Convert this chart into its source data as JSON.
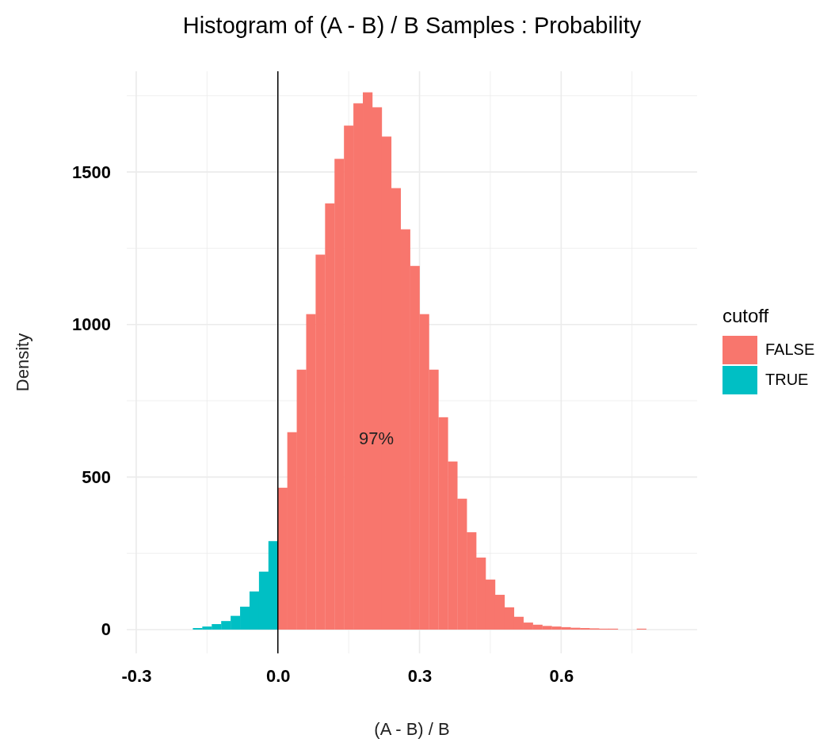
{
  "chart_data": {
    "type": "histogram",
    "title": "Histogram of (A - B) / B Samples : Probability",
    "xlabel": "(A - B) / B",
    "ylabel": "Density",
    "legend_title": "cutoff",
    "bins": [
      -0.18,
      -0.16,
      -0.14,
      -0.12,
      -0.1,
      -0.08,
      -0.06,
      -0.04,
      -0.02,
      0,
      0.02,
      0.04,
      0.06,
      0.08,
      0.1,
      0.12,
      0.14,
      0.16,
      0.18,
      0.2,
      0.22,
      0.24,
      0.26,
      0.28,
      0.3,
      0.32,
      0.34,
      0.36,
      0.38,
      0.4,
      0.42,
      0.44,
      0.46,
      0.48,
      0.5,
      0.52,
      0.54,
      0.56,
      0.58,
      0.6,
      0.62,
      0.64,
      0.66,
      0.68,
      0.7,
      0.72,
      0.74,
      0.76,
      0.78
    ],
    "series": [
      {
        "name": "FALSE",
        "color": "#f8766d",
        "values": [
          null,
          null,
          null,
          null,
          null,
          null,
          null,
          null,
          null,
          465,
          647,
          852,
          1034,
          1229,
          1397,
          1543,
          1652,
          1725,
          1761,
          1712,
          1616,
          1447,
          1312,
          1192,
          1034,
          852,
          696,
          551,
          429,
          319,
          236,
          164,
          114,
          73,
          42,
          23,
          16,
          12,
          10,
          8,
          6,
          5,
          4,
          3,
          3,
          0,
          0,
          3
        ]
      },
      {
        "name": "TRUE",
        "color": "#00bfc4",
        "values": [
          5,
          10,
          18,
          28,
          45,
          75,
          125,
          190,
          290,
          null,
          null,
          null,
          null,
          null,
          null,
          null,
          null,
          null,
          null,
          null,
          null,
          null,
          null,
          null,
          null,
          null,
          null,
          null,
          null,
          null,
          null,
          null,
          null,
          null,
          null,
          null,
          null,
          null,
          null,
          null,
          null,
          null,
          null,
          null,
          null,
          null,
          null,
          null
        ]
      }
    ],
    "xlim": [
      -0.32,
      0.888
    ],
    "ylim": [
      -78,
      1830
    ],
    "xticks": [
      -0.3,
      {
        "value": -0.15,
        "label": null
      },
      {
        "value": 0,
        "label": "0.0"
      },
      {
        "value": 0.15,
        "label": null
      },
      0.3,
      {
        "value": 0.45,
        "label": null
      },
      0.6,
      {
        "value": 0.75,
        "label": null
      }
    ],
    "yticks": [
      0,
      {
        "value": 250,
        "label": null
      },
      500,
      {
        "value": 750,
        "label": null
      },
      1000,
      {
        "value": 1250,
        "label": null
      },
      1500,
      {
        "value": 1750,
        "label": null
      }
    ],
    "grid": true,
    "legend": "right",
    "ref_lines": [
      {
        "axis": "x",
        "value": 0,
        "color": "#000000"
      }
    ],
    "annotations": [
      "97%"
    ]
  }
}
